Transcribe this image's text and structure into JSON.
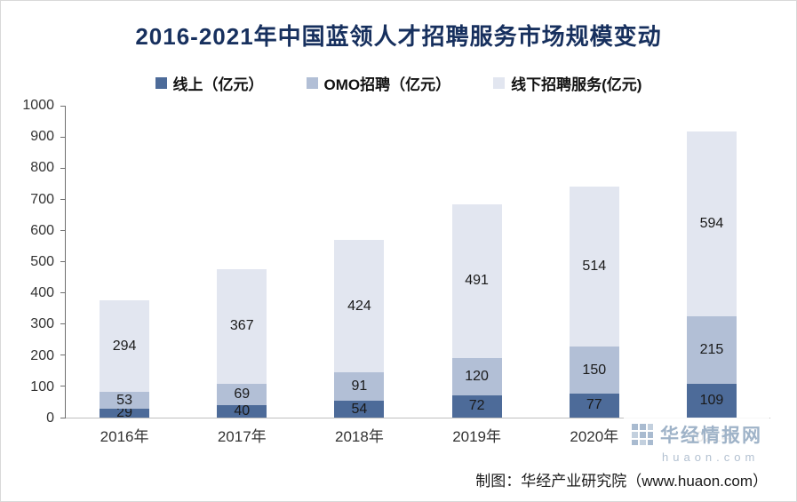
{
  "title": "2016-2021年中国蓝领人才招聘服务市场规模变动",
  "footer": {
    "credit": "制图：华经产业研究院（www.huaon.com）"
  },
  "watermark": {
    "brand": "华经情报网",
    "domain": "huaon.com"
  },
  "chart_data": {
    "type": "bar",
    "stacked": true,
    "title": "2016-2021年中国蓝领人才招聘服务市场规模变动",
    "categories": [
      "2016年",
      "2017年",
      "2018年",
      "2019年",
      "2020年",
      "2021年"
    ],
    "series": [
      {
        "name": "线上（亿元）",
        "color": "#4d6b99",
        "values": [
          29,
          40,
          54,
          72,
          77,
          109
        ]
      },
      {
        "name": "OMO招聘（亿元）",
        "color": "#b2bfd6",
        "values": [
          53,
          69,
          91,
          120,
          150,
          215
        ]
      },
      {
        "name": "线下招聘服务(亿元)",
        "color": "#e2e6f0",
        "values": [
          294,
          367,
          424,
          491,
          514,
          594
        ]
      }
    ],
    "totals": [
      376,
      476,
      569,
      683,
      741,
      918
    ],
    "xlabel": "",
    "ylabel": "",
    "ylim": [
      0,
      1000
    ],
    "yticks": [
      0,
      100,
      200,
      300,
      400,
      500,
      600,
      700,
      800,
      900,
      1000
    ],
    "grid": false,
    "legend_position": "top",
    "data_labels": "inside"
  }
}
